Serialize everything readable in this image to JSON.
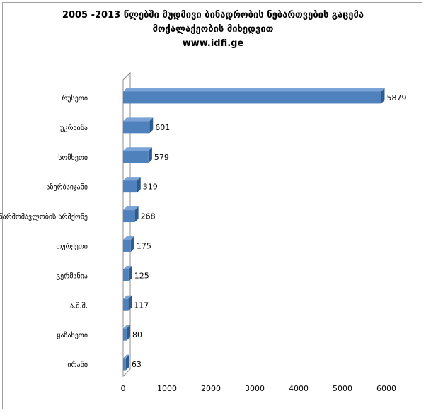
{
  "chart_data": {
    "type": "bar",
    "orientation": "horizontal",
    "title_lines": [
      "2005 -2013 წლებში მუდმივი ბინადრობის ნებართვების გაცემა",
      "მოქალაქეობის მიხედვით",
      "www.idfi.ge"
    ],
    "categories": [
      "რუსეთი",
      "უკრაინა",
      "სომხეთი",
      "აზერბაიჯანი",
      "წარმომავლობის არმქონე",
      "თურქეთი",
      "გერმანია",
      "ა.შ.შ.",
      "ყაზახეთი",
      "ირანი"
    ],
    "values": [
      5879,
      601,
      579,
      319,
      268,
      175,
      125,
      117,
      80,
      63
    ],
    "value_labels": [
      "5879",
      "601",
      "579",
      "319",
      "268",
      "175",
      "125",
      "117",
      "80",
      "63"
    ],
    "xlim": [
      0,
      6000
    ],
    "xticks": [
      "0",
      "1000",
      "2000",
      "3000",
      "4000",
      "5000",
      "6000"
    ],
    "xtick_values": [
      0,
      1000,
      2000,
      3000,
      4000,
      5000,
      6000
    ],
    "grid": false,
    "legend": "none",
    "style": "3d",
    "bar_color": "#4f81bd",
    "bar_top_color": "#7aa3d8",
    "bar_side_color": "#2e5a8e"
  }
}
